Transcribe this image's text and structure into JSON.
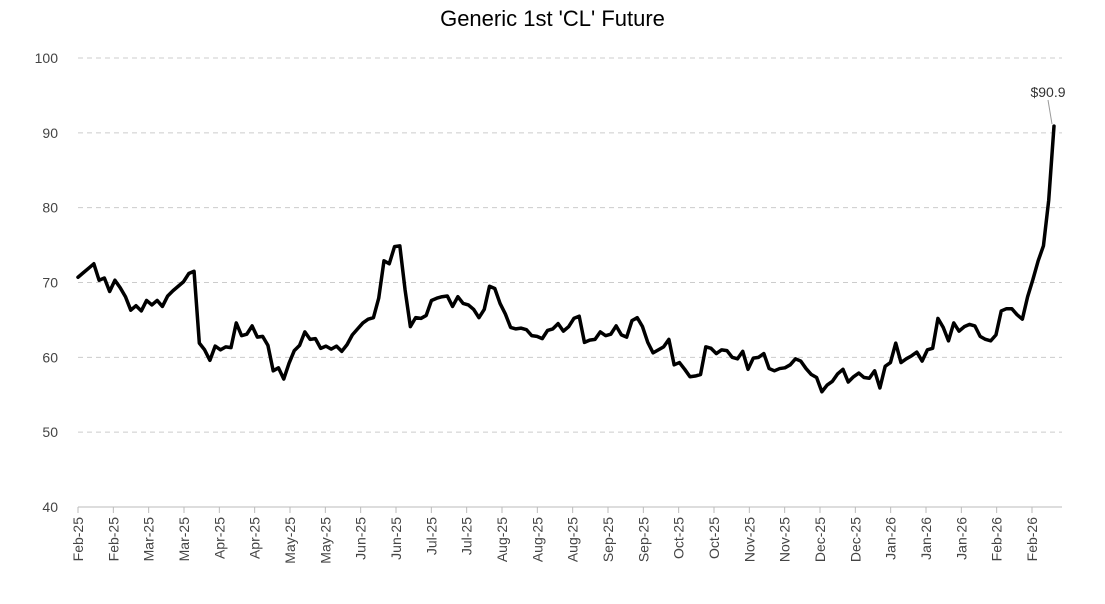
{
  "chart_data": {
    "type": "line",
    "title": "Generic 1st 'CL' Future",
    "xlabel": "",
    "ylabel": "",
    "ylim": [
      40,
      100
    ],
    "yticks": [
      40,
      50,
      60,
      70,
      80,
      90,
      100
    ],
    "grid": "horizontal-dashed",
    "line_color": "#000000",
    "grid_color": "#cccccc",
    "annotation": {
      "label": "$90.9",
      "value": 90.9
    },
    "xtick_labels": [
      "Feb-25",
      "Feb-25",
      "Mar-25",
      "Mar-25",
      "Apr-25",
      "Apr-25",
      "May-25",
      "May-25",
      "Jun-25",
      "Jun-25",
      "Jul-25",
      "Jul-25",
      "Aug-25",
      "Aug-25",
      "Aug-25",
      "Sep-25",
      "Sep-25",
      "Oct-25",
      "Oct-25",
      "Nov-25",
      "Nov-25",
      "Dec-25",
      "Dec-25",
      "Jan-26",
      "Jan-26",
      "Jan-26",
      "Feb-26",
      "Feb-26"
    ],
    "series": [
      {
        "values": [
          70.7,
          71.3,
          71.9,
          72.5,
          70.3,
          70.6,
          68.8,
          70.3,
          69.3,
          68.1,
          66.3,
          66.9,
          66.2,
          67.6,
          67.0,
          67.6,
          66.8,
          68.2,
          68.9,
          69.5,
          70.1,
          71.2,
          71.5,
          61.9,
          61.0,
          59.6,
          61.5,
          61.0,
          61.4,
          61.3,
          64.6,
          62.9,
          63.1,
          64.2,
          62.7,
          62.8,
          61.6,
          58.2,
          58.6,
          57.1,
          59.2,
          60.9,
          61.6,
          63.4,
          62.4,
          62.5,
          61.2,
          61.5,
          61.1,
          61.5,
          60.8,
          61.7,
          63.0,
          63.8,
          64.6,
          65.1,
          65.3,
          67.9,
          72.9,
          72.5,
          74.8,
          74.9,
          69.0,
          64.1,
          65.3,
          65.2,
          65.6,
          67.6,
          67.9,
          68.1,
          68.2,
          66.8,
          68.1,
          67.2,
          67.0,
          66.4,
          65.3,
          66.4,
          69.5,
          69.2,
          67.2,
          65.8,
          64.0,
          63.8,
          63.9,
          63.7,
          62.9,
          62.8,
          62.5,
          63.6,
          63.8,
          64.5,
          63.5,
          64.1,
          65.2,
          65.5,
          62.0,
          62.3,
          62.4,
          63.4,
          62.9,
          63.1,
          64.2,
          63.0,
          62.7,
          64.9,
          65.3,
          64.1,
          62.0,
          60.6,
          61.0,
          61.4,
          62.4,
          59.0,
          59.3,
          58.4,
          57.4,
          57.5,
          57.7,
          61.4,
          61.2,
          60.5,
          61.0,
          60.9,
          60.0,
          59.8,
          60.8,
          58.4,
          59.9,
          60.0,
          60.5,
          58.5,
          58.2,
          58.5,
          58.6,
          59.0,
          59.8,
          59.5,
          58.5,
          57.7,
          57.3,
          55.4,
          56.3,
          56.8,
          57.8,
          58.4,
          56.7,
          57.4,
          57.9,
          57.3,
          57.2,
          58.2,
          55.9,
          58.8,
          59.3,
          61.9,
          59.3,
          59.8,
          60.2,
          60.7,
          59.5,
          61.0,
          61.2,
          65.2,
          64.0,
          62.2,
          64.6,
          63.5,
          64.1,
          64.4,
          64.2,
          62.8,
          62.4,
          62.2,
          63.0,
          66.2,
          66.5,
          66.5,
          65.7,
          65.1,
          68.1,
          70.4,
          72.9,
          74.9,
          81.0,
          90.9
        ]
      }
    ]
  }
}
